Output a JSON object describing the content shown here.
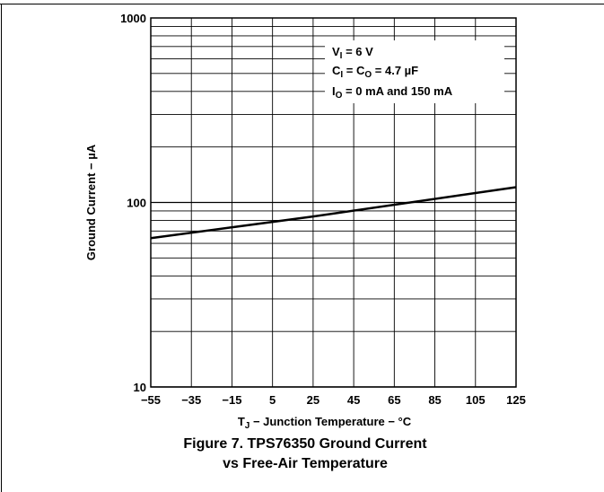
{
  "chart_data": {
    "type": "line",
    "title": "",
    "xlabel": "T J − Junction Temperature − °C",
    "xlabel_main": "T",
    "xlabel_sub": "J",
    "xlabel_rest": " − Junction Temperature − °C",
    "ylabel": "Ground Current − µA",
    "x_scale": "linear",
    "y_scale": "log",
    "xlim": [
      -55,
      125
    ],
    "ylim": [
      10,
      1000
    ],
    "x_ticks": [
      -55,
      -35,
      -15,
      5,
      25,
      45,
      65,
      85,
      105,
      125
    ],
    "x_tick_labels": [
      "−55",
      "−35",
      "−15",
      "5",
      "25",
      "45",
      "65",
      "85",
      "105",
      "125"
    ],
    "y_ticks": [
      10,
      100,
      1000
    ],
    "y_tick_labels": [
      "10",
      "100",
      "1000"
    ],
    "grid": true,
    "series": [
      {
        "x": [
          -55,
          25,
          125
        ],
        "y": [
          64,
          84,
          121
        ]
      }
    ],
    "legend_placement": "top-right",
    "annotations": [
      {
        "main": "V",
        "sub": "I",
        "rest": " = 6 V"
      },
      {
        "main": "C",
        "sub": "I",
        "mid": " = C",
        "sub2": "O",
        "rest": " = 4.7 µF"
      },
      {
        "main": "I",
        "sub": "O",
        "rest": " = 0 mA and 150 mA"
      }
    ]
  },
  "caption": {
    "line1": "Figure 7. TPS76350 Ground Current",
    "line2": "vs Free-Air Temperature"
  }
}
